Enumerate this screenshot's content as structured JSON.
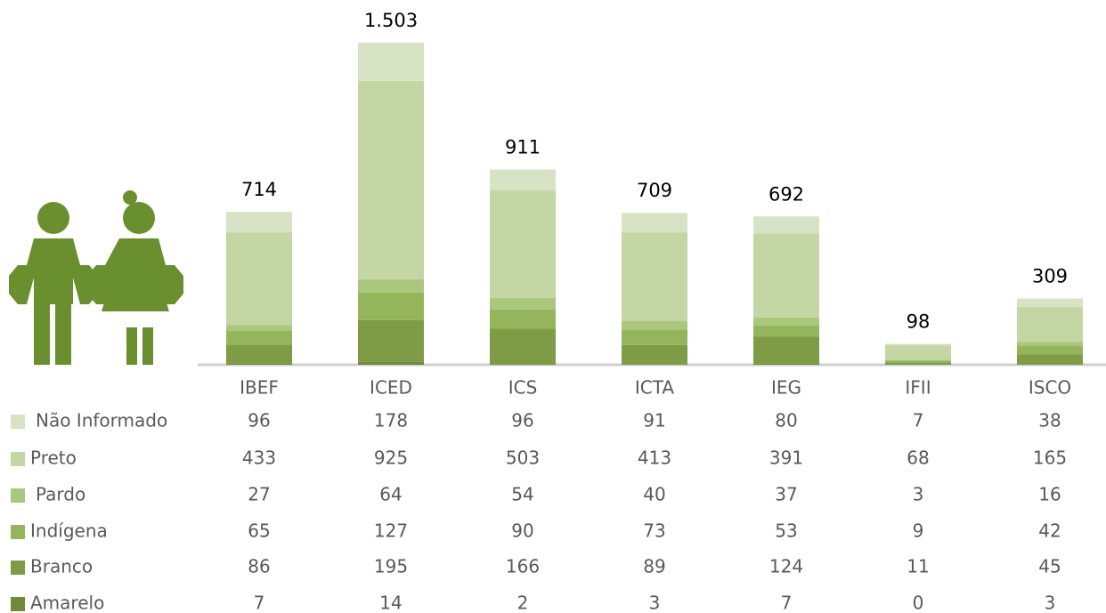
{
  "chart_data": {
    "type": "stacked_bar",
    "categories": [
      "IBEF",
      "ICED",
      "ICS",
      "ICTA",
      "IEG",
      "IFII",
      "ISCO"
    ],
    "series": [
      {
        "name": "Não Informado",
        "color": "#d7e3c4",
        "values": [
          96,
          178,
          96,
          91,
          80,
          7,
          38
        ]
      },
      {
        "name": "Preto",
        "color": "#c3d6a4",
        "values": [
          433,
          925,
          503,
          413,
          391,
          68,
          165
        ]
      },
      {
        "name": "Pardo",
        "color": "#aac77d",
        "values": [
          27,
          64,
          54,
          40,
          37,
          3,
          16
        ]
      },
      {
        "name": "Indígena",
        "color": "#94b55a",
        "values": [
          65,
          127,
          90,
          73,
          53,
          9,
          42
        ]
      },
      {
        "name": "Branco",
        "color": "#7e9c46",
        "values": [
          86,
          195,
          166,
          89,
          124,
          11,
          45
        ]
      },
      {
        "name": "Amarelo",
        "color": "#6f8a3c",
        "values": [
          7,
          14,
          2,
          3,
          7,
          0,
          3
        ]
      }
    ],
    "totals": {
      "values": [
        714,
        1503,
        911,
        709,
        692,
        98,
        309
      ],
      "value_labels": [
        "714",
        "1.503",
        "911",
        "709",
        "692",
        "98",
        "309"
      ]
    }
  }
}
